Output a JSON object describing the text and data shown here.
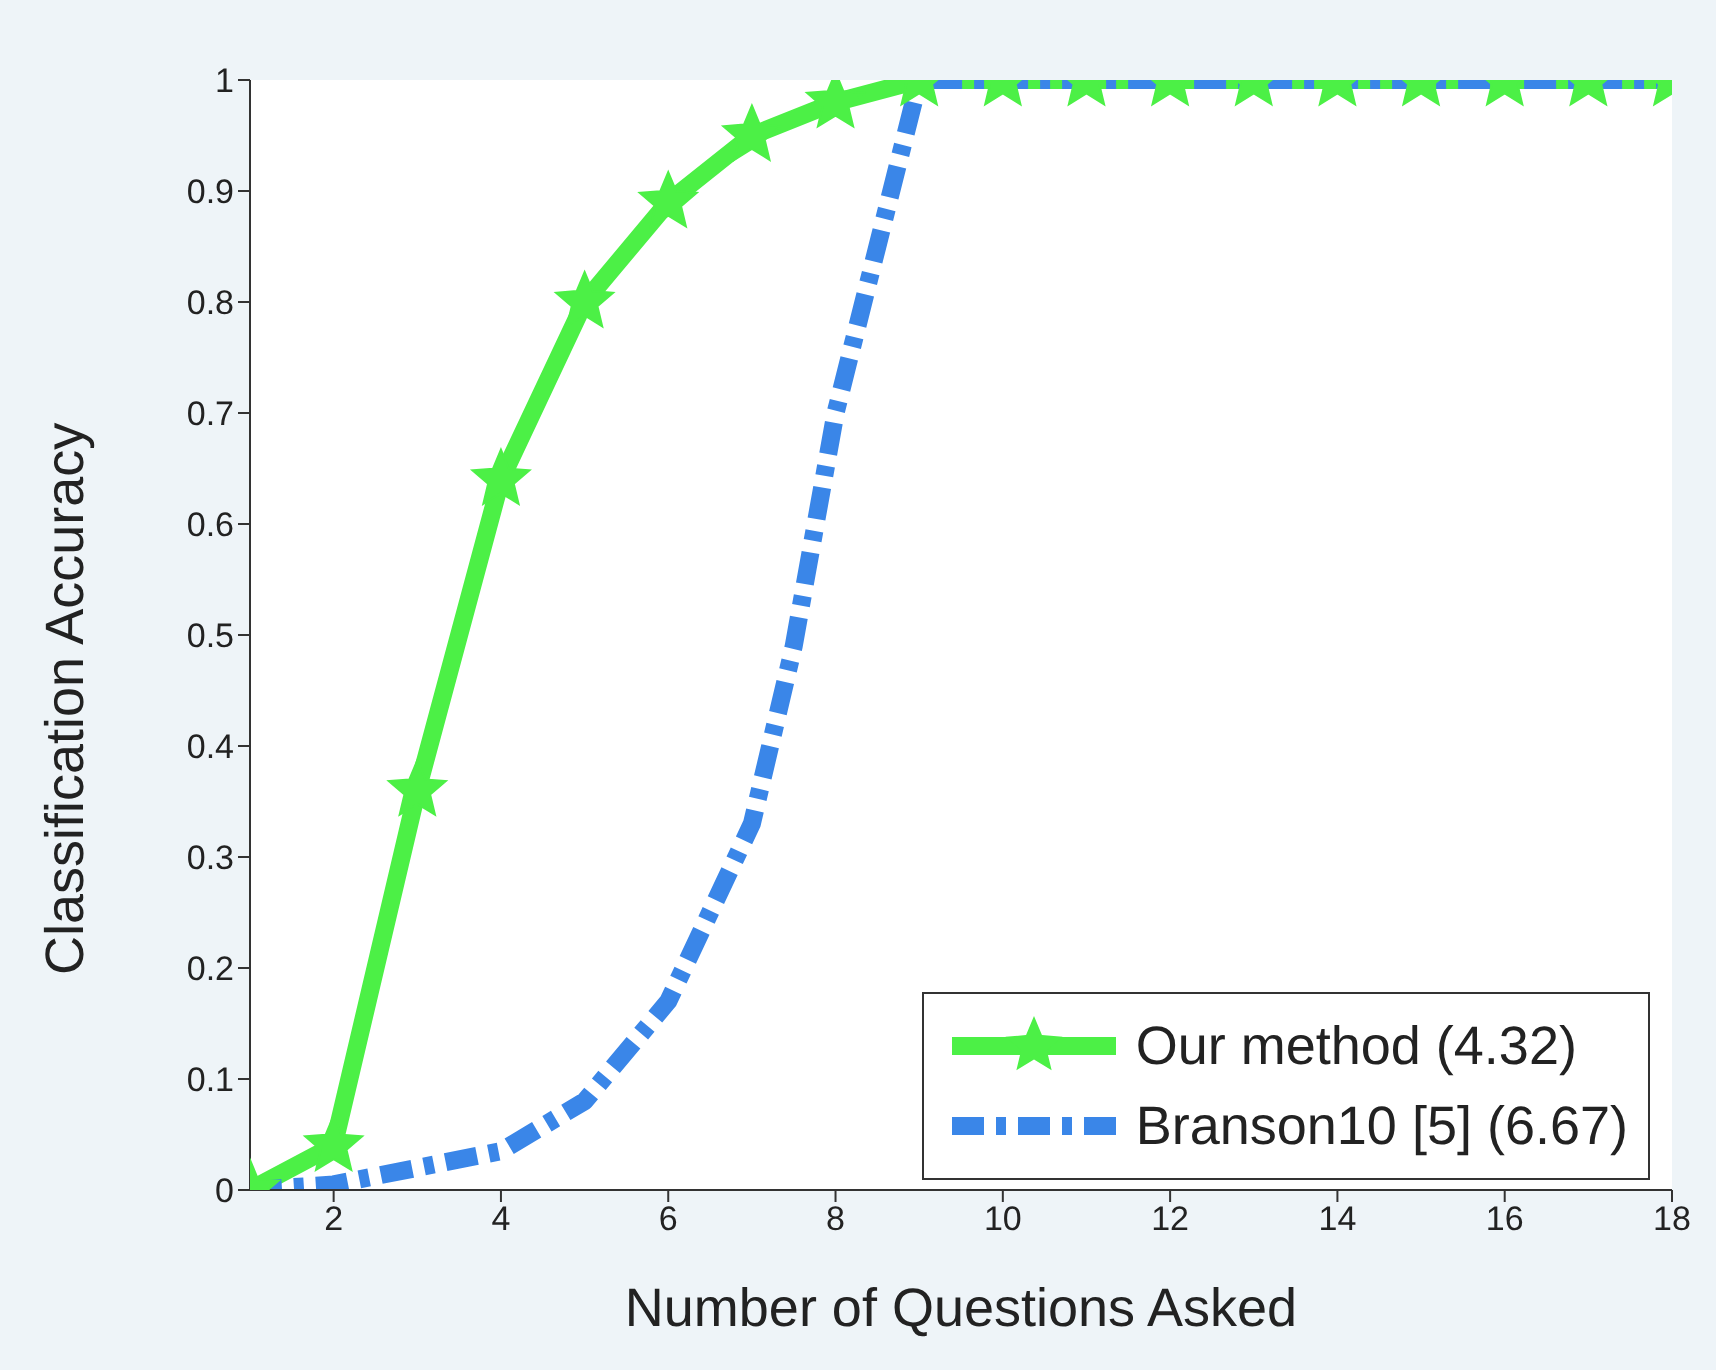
{
  "chart_data": {
    "type": "line",
    "xlabel": "Number of Questions Asked",
    "ylabel": "Classification Accuracy",
    "xlim": [
      1,
      18
    ],
    "xticks": [
      2,
      4,
      6,
      8,
      10,
      12,
      14,
      16,
      18
    ],
    "ylim": [
      0,
      1
    ],
    "yticks": [
      0,
      0.1,
      0.2,
      0.3,
      0.4,
      0.5,
      0.6,
      0.7,
      0.8,
      0.9,
      1
    ],
    "grid": false,
    "legend": "bottom right",
    "series": [
      {
        "name": "Our method (4.32)",
        "color": "#4cf046",
        "marker": "star",
        "line_style": "solid",
        "x": [
          1,
          2,
          3,
          4,
          5,
          6,
          7,
          8,
          9,
          10,
          11,
          12,
          13,
          14,
          15,
          16,
          17,
          18
        ],
        "values": [
          0,
          0.04,
          0.36,
          0.64,
          0.8,
          0.89,
          0.95,
          0.98,
          1,
          1,
          1,
          1,
          1,
          1,
          1,
          1,
          1,
          1
        ]
      },
      {
        "name": "Branson10 [5] (6.67)",
        "color": "#3a86e8",
        "marker": "none",
        "line_style": "dashed",
        "x": [
          1,
          2,
          3,
          4,
          5,
          6,
          7,
          7.5,
          8,
          8.5,
          9,
          10,
          11,
          12,
          13,
          14,
          15,
          16,
          17,
          18
        ],
        "values": [
          0,
          0.005,
          0.02,
          0.035,
          0.08,
          0.17,
          0.33,
          0.49,
          0.7,
          0.85,
          1,
          1,
          1,
          1,
          1,
          1,
          1,
          1,
          1,
          1
        ]
      }
    ]
  }
}
